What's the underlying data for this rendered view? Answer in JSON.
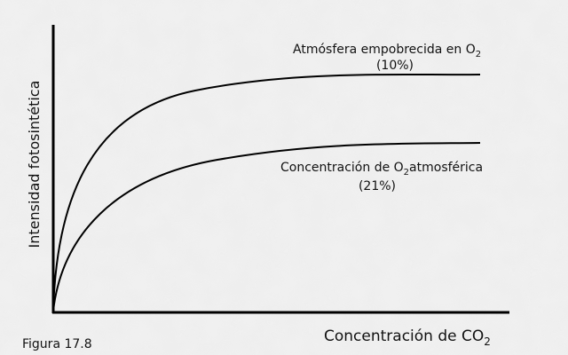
{
  "figure": {
    "label": "Figura 17.8"
  },
  "axes": {
    "y_label": "Intensidad fotosintética",
    "x_label": {
      "text": "Concentración de CO",
      "subscript": "2"
    }
  },
  "curves": [
    {
      "text": "Atmósfera empobrecida en O",
      "subscript": "2",
      "percent": "(10%)"
    },
    {
      "text": "Concentración de O",
      "subscript": "2",
      "after": "atmosférica",
      "percent": "(21%)"
    }
  ]
}
